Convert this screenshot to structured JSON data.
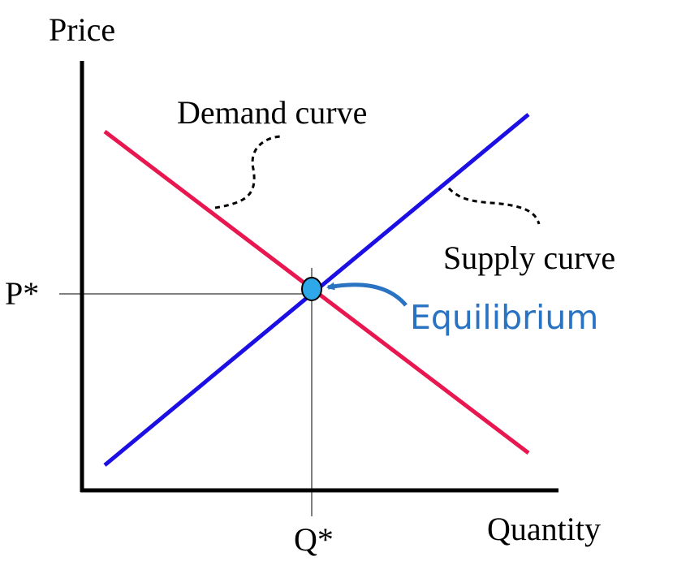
{
  "axes": {
    "y_label": "Price",
    "x_label": "Quantity",
    "price_marker": "P*",
    "quantity_marker": "Q*"
  },
  "curves": {
    "demand": {
      "label": "Demand curve",
      "color": "#e8174f"
    },
    "supply": {
      "label": "Supply curve",
      "color": "#1c0fe3"
    }
  },
  "equilibrium": {
    "label": "Equilibrium",
    "label_color": "#2a72c2",
    "point_color": "#2fa8ea"
  }
}
